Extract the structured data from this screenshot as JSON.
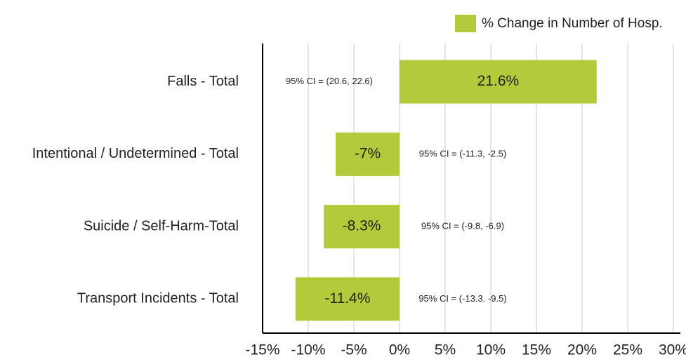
{
  "chart_data": {
    "type": "barh",
    "categories": [
      "Falls - Total",
      "Intentional / Undetermined - Total",
      "Suicide / Self-Harm-Total",
      "Transport Incidents - Total"
    ],
    "series": [
      {
        "name": "% Change in Number of Hosp.",
        "color": "#b3cb3b",
        "values": [
          21.6,
          -7,
          -8.3,
          -11.4
        ],
        "value_labels": [
          "21.6%",
          "-7%",
          "-8.3%",
          "-11.4%"
        ]
      }
    ],
    "annotations": [
      "95% CI = (20.6, 22.6)",
      "95% CI = (-11.3, -2.5)",
      "95% CI = (-9.8, -6.9)",
      "95% CI = (-13.3. -9.5)"
    ],
    "xlim": [
      -15,
      30
    ],
    "xticks": [
      {
        "value": -15,
        "label": "-15%"
      },
      {
        "value": -10,
        "label": "-10%"
      },
      {
        "value": -5,
        "label": "-5%"
      },
      {
        "value": 0,
        "label": "0%"
      },
      {
        "value": 5,
        "label": "5%"
      },
      {
        "value": 10,
        "label": "10%"
      },
      {
        "value": 15,
        "label": "15%"
      },
      {
        "value": 20,
        "label": "20%"
      },
      {
        "value": 25,
        "label": "25%"
      },
      {
        "value": 30,
        "label": "30%"
      }
    ],
    "grid": true,
    "legend": "top-right"
  }
}
